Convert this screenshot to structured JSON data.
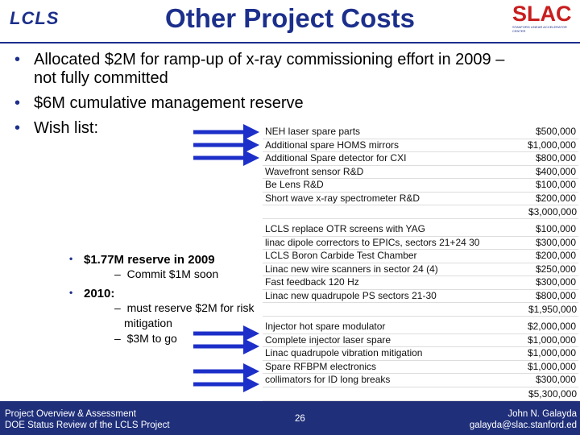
{
  "header": {
    "logo_left": "LCLS",
    "title": "Other Project Costs",
    "logo_right": "SLAC",
    "logo_right_sub": "STANFORD LINEAR ACCELERATOR CENTER"
  },
  "bullets": [
    "Allocated $2M for ramp-up of x-ray commissioning effort in 2009 – not fully committed",
    "$6M cumulative management reserve",
    "Wish list:"
  ],
  "table": {
    "groups": [
      {
        "rows": [
          [
            "NEH laser spare parts",
            "$500,000"
          ],
          [
            "Additional spare HOMS mirrors",
            "$1,000,000"
          ],
          [
            "Additional Spare detector for CXI",
            "$800,000"
          ],
          [
            "Wavefront sensor R&D",
            "$400,000"
          ],
          [
            "Be Lens R&D",
            "$100,000"
          ],
          [
            "Short wave x-ray spectrometer R&D",
            "$200,000"
          ]
        ],
        "total": "$3,000,000"
      },
      {
        "rows": [
          [
            "LCLS replace OTR screens with YAG",
            "$100,000"
          ],
          [
            "linac dipole correctors to EPICs, sectors 21+24 30",
            "$300,000"
          ],
          [
            "LCLS Boron Carbide Test Chamber",
            "$200,000"
          ],
          [
            "Linac new wire scanners in sector 24 (4)",
            "$250,000"
          ],
          [
            "Fast feedback 120 Hz",
            "$300,000"
          ],
          [
            "Linac new quadrupole PS sectors 21-30",
            "$800,000"
          ]
        ],
        "total": "$1,950,000"
      },
      {
        "rows": [
          [
            "Injector hot spare modulator",
            "$2,000,000"
          ],
          [
            "Complete injector laser spare",
            "$1,000,000"
          ],
          [
            "Linac quadrupole vibration mitigation",
            "$1,000,000"
          ],
          [
            "Spare RFBPM electronics",
            "$1,000,000"
          ],
          [
            "collimators for ID long breaks",
            "$300,000"
          ]
        ],
        "total": "$5,300,000"
      }
    ]
  },
  "sub_bullets": [
    {
      "text": "$1.77M reserve in 2009",
      "items": [
        "Commit $1M soon"
      ]
    },
    {
      "text": "2010:",
      "items": [
        "must reserve $2M for risk mitigation",
        "$3M to go"
      ]
    }
  ],
  "footer": {
    "left": [
      "Project Overview & Assessment",
      "DOE Status Review of the LCLS Project"
    ],
    "page": "26",
    "right": [
      "John N. Galayda",
      "galayda@slac.stanford.ed"
    ]
  }
}
